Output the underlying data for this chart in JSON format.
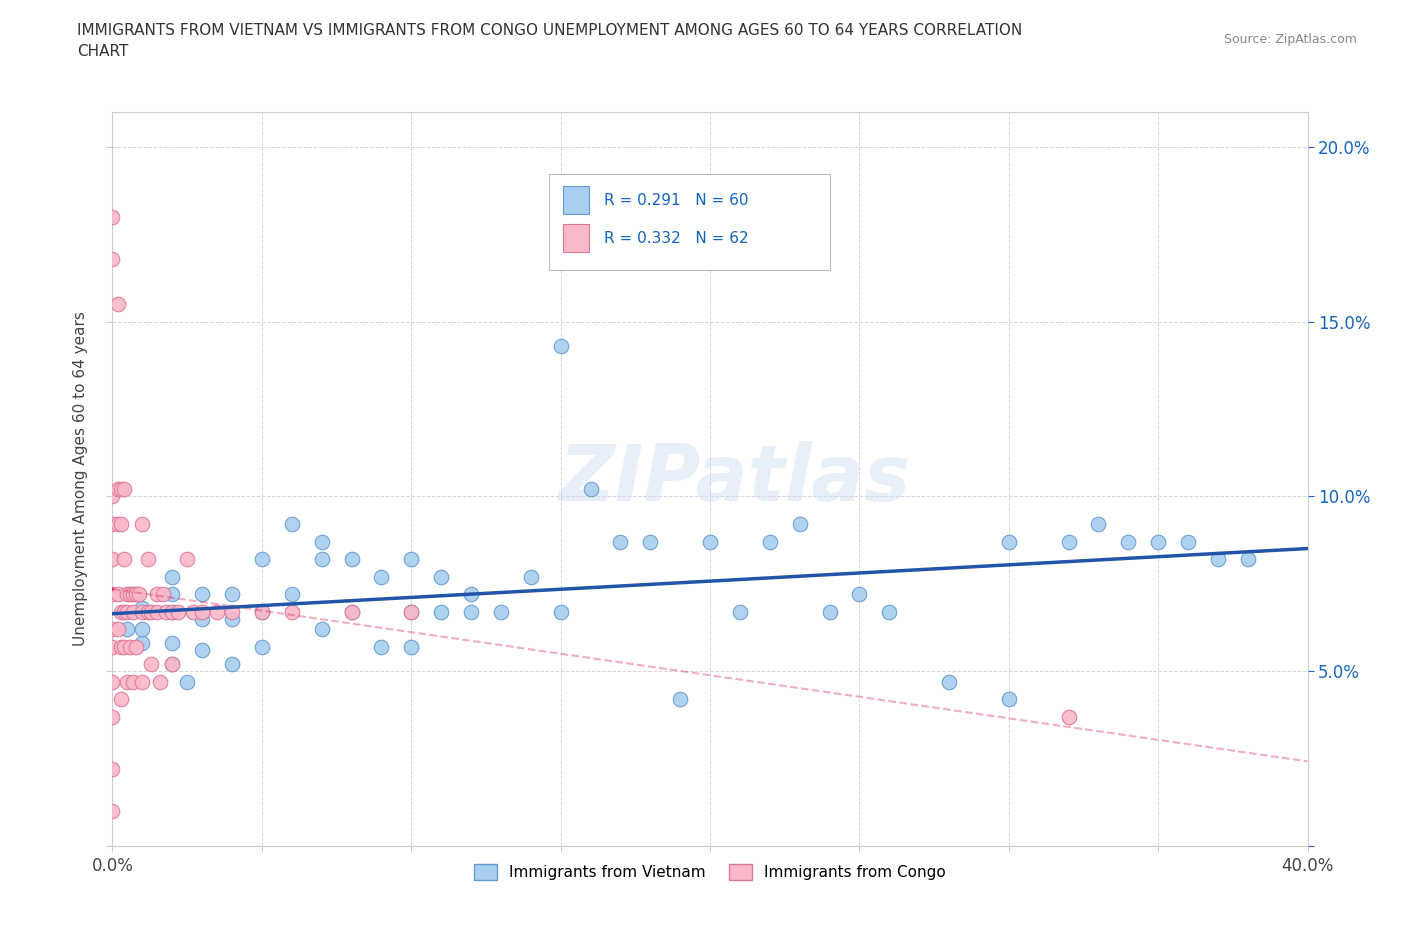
{
  "title": "IMMIGRANTS FROM VIETNAM VS IMMIGRANTS FROM CONGO UNEMPLOYMENT AMONG AGES 60 TO 64 YEARS CORRELATION\nCHART",
  "source_text": "Source: ZipAtlas.com",
  "ylabel": "Unemployment Among Ages 60 to 64 years",
  "xlim": [
    0.0,
    0.4
  ],
  "ylim": [
    0.0,
    0.21
  ],
  "xticks": [
    0.0,
    0.05,
    0.1,
    0.15,
    0.2,
    0.25,
    0.3,
    0.35,
    0.4
  ],
  "yticks": [
    0.0,
    0.05,
    0.1,
    0.15,
    0.2
  ],
  "vietnam_color": "#A8CEF0",
  "congo_color": "#F9B8C8",
  "vietnam_edge": "#6699CC",
  "congo_edge": "#DD7799",
  "trend_vietnam_color": "#2255AA",
  "trend_congo_color": "#DD3366",
  "R_vietnam": 0.291,
  "N_vietnam": 60,
  "R_congo": 0.332,
  "N_congo": 62,
  "watermark": "ZIPatlas",
  "legend_entries": [
    "Immigrants from Vietnam",
    "Immigrants from Congo"
  ],
  "vietnam_x": [
    0.005,
    0.01,
    0.01,
    0.01,
    0.02,
    0.02,
    0.02,
    0.02,
    0.02,
    0.025,
    0.03,
    0.03,
    0.03,
    0.04,
    0.04,
    0.04,
    0.05,
    0.05,
    0.05,
    0.06,
    0.06,
    0.07,
    0.07,
    0.07,
    0.08,
    0.08,
    0.09,
    0.09,
    0.1,
    0.1,
    0.1,
    0.11,
    0.11,
    0.12,
    0.12,
    0.13,
    0.14,
    0.15,
    0.15,
    0.16,
    0.17,
    0.18,
    0.19,
    0.2,
    0.21,
    0.22,
    0.23,
    0.24,
    0.25,
    0.26,
    0.28,
    0.3,
    0.3,
    0.32,
    0.33,
    0.34,
    0.35,
    0.36,
    0.37,
    0.38
  ],
  "vietnam_y": [
    0.062,
    0.068,
    0.058,
    0.062,
    0.072,
    0.067,
    0.058,
    0.077,
    0.052,
    0.047,
    0.072,
    0.065,
    0.056,
    0.072,
    0.065,
    0.052,
    0.082,
    0.067,
    0.057,
    0.092,
    0.072,
    0.087,
    0.062,
    0.082,
    0.082,
    0.067,
    0.077,
    0.057,
    0.082,
    0.067,
    0.057,
    0.077,
    0.067,
    0.072,
    0.067,
    0.067,
    0.077,
    0.143,
    0.067,
    0.102,
    0.087,
    0.087,
    0.042,
    0.087,
    0.067,
    0.087,
    0.092,
    0.067,
    0.072,
    0.067,
    0.047,
    0.087,
    0.042,
    0.087,
    0.092,
    0.087,
    0.087,
    0.087,
    0.082,
    0.082
  ],
  "congo_x": [
    0.0,
    0.0,
    0.0,
    0.0,
    0.0,
    0.0,
    0.0,
    0.0,
    0.0,
    0.0,
    0.0,
    0.0,
    0.002,
    0.002,
    0.002,
    0.002,
    0.002,
    0.003,
    0.003,
    0.003,
    0.003,
    0.003,
    0.004,
    0.004,
    0.004,
    0.004,
    0.005,
    0.005,
    0.005,
    0.006,
    0.006,
    0.007,
    0.007,
    0.007,
    0.008,
    0.008,
    0.009,
    0.01,
    0.01,
    0.01,
    0.012,
    0.012,
    0.013,
    0.013,
    0.015,
    0.015,
    0.016,
    0.017,
    0.018,
    0.02,
    0.02,
    0.022,
    0.025,
    0.027,
    0.03,
    0.035,
    0.04,
    0.05,
    0.06,
    0.08,
    0.1,
    0.32
  ],
  "congo_y": [
    0.18,
    0.168,
    0.1,
    0.092,
    0.082,
    0.072,
    0.062,
    0.057,
    0.047,
    0.037,
    0.022,
    0.01,
    0.155,
    0.102,
    0.092,
    0.072,
    0.062,
    0.102,
    0.092,
    0.067,
    0.057,
    0.042,
    0.102,
    0.082,
    0.067,
    0.057,
    0.072,
    0.067,
    0.047,
    0.072,
    0.057,
    0.072,
    0.067,
    0.047,
    0.072,
    0.057,
    0.072,
    0.092,
    0.067,
    0.047,
    0.082,
    0.067,
    0.067,
    0.052,
    0.072,
    0.067,
    0.047,
    0.072,
    0.067,
    0.067,
    0.052,
    0.067,
    0.082,
    0.067,
    0.067,
    0.067,
    0.067,
    0.067,
    0.067,
    0.067,
    0.067,
    0.037
  ]
}
